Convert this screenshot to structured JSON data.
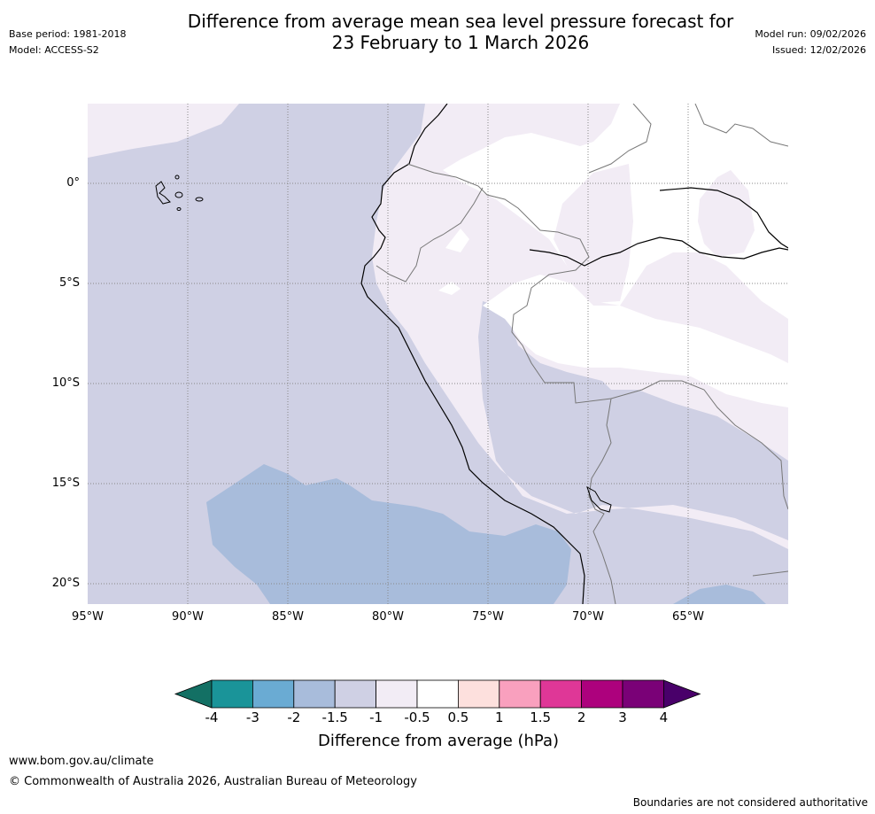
{
  "header": {
    "base_period": "Base period: 1981-2018",
    "model": "Model: ACCESS-S2",
    "title_line1": "Difference from average mean sea level pressure forecast for",
    "title_line2": "23 February to 1 March 2026",
    "model_run": "Model run: 09/02/2026",
    "issued": "Issued: 12/02/2026"
  },
  "map": {
    "lat_labels": [
      "0°",
      "5°S",
      "10°S",
      "15°S",
      "20°S"
    ],
    "lon_labels": [
      "95°W",
      "90°W",
      "85°W",
      "80°W",
      "75°W",
      "70°W",
      "65°W"
    ],
    "extent": {
      "lon_min": -95,
      "lon_max": -60,
      "lat_min": -21,
      "lat_max": 4
    }
  },
  "colorbar": {
    "title": "Difference from average (hPa)",
    "ticks": [
      "-4",
      "-3",
      "-2",
      "-1.5",
      "-1",
      "-0.5",
      "0.5",
      "1",
      "1.5",
      "2",
      "3",
      "4"
    ],
    "colors": [
      "#137064",
      "#1a9499",
      "#6aabd3",
      "#a8bcdb",
      "#cfd0e4",
      "#f2ecf5",
      "#ffffff",
      "#fde0dd",
      "#f9a0be",
      "#df3797",
      "#ad017d",
      "#7a0177",
      "#49006a"
    ]
  },
  "footer": {
    "url": "www.bom.gov.au/climate",
    "copyright": "© Commonwealth of Australia 2026, Australian Bureau of Meteorology",
    "boundaries": "Boundaries are not considered authoritative"
  }
}
